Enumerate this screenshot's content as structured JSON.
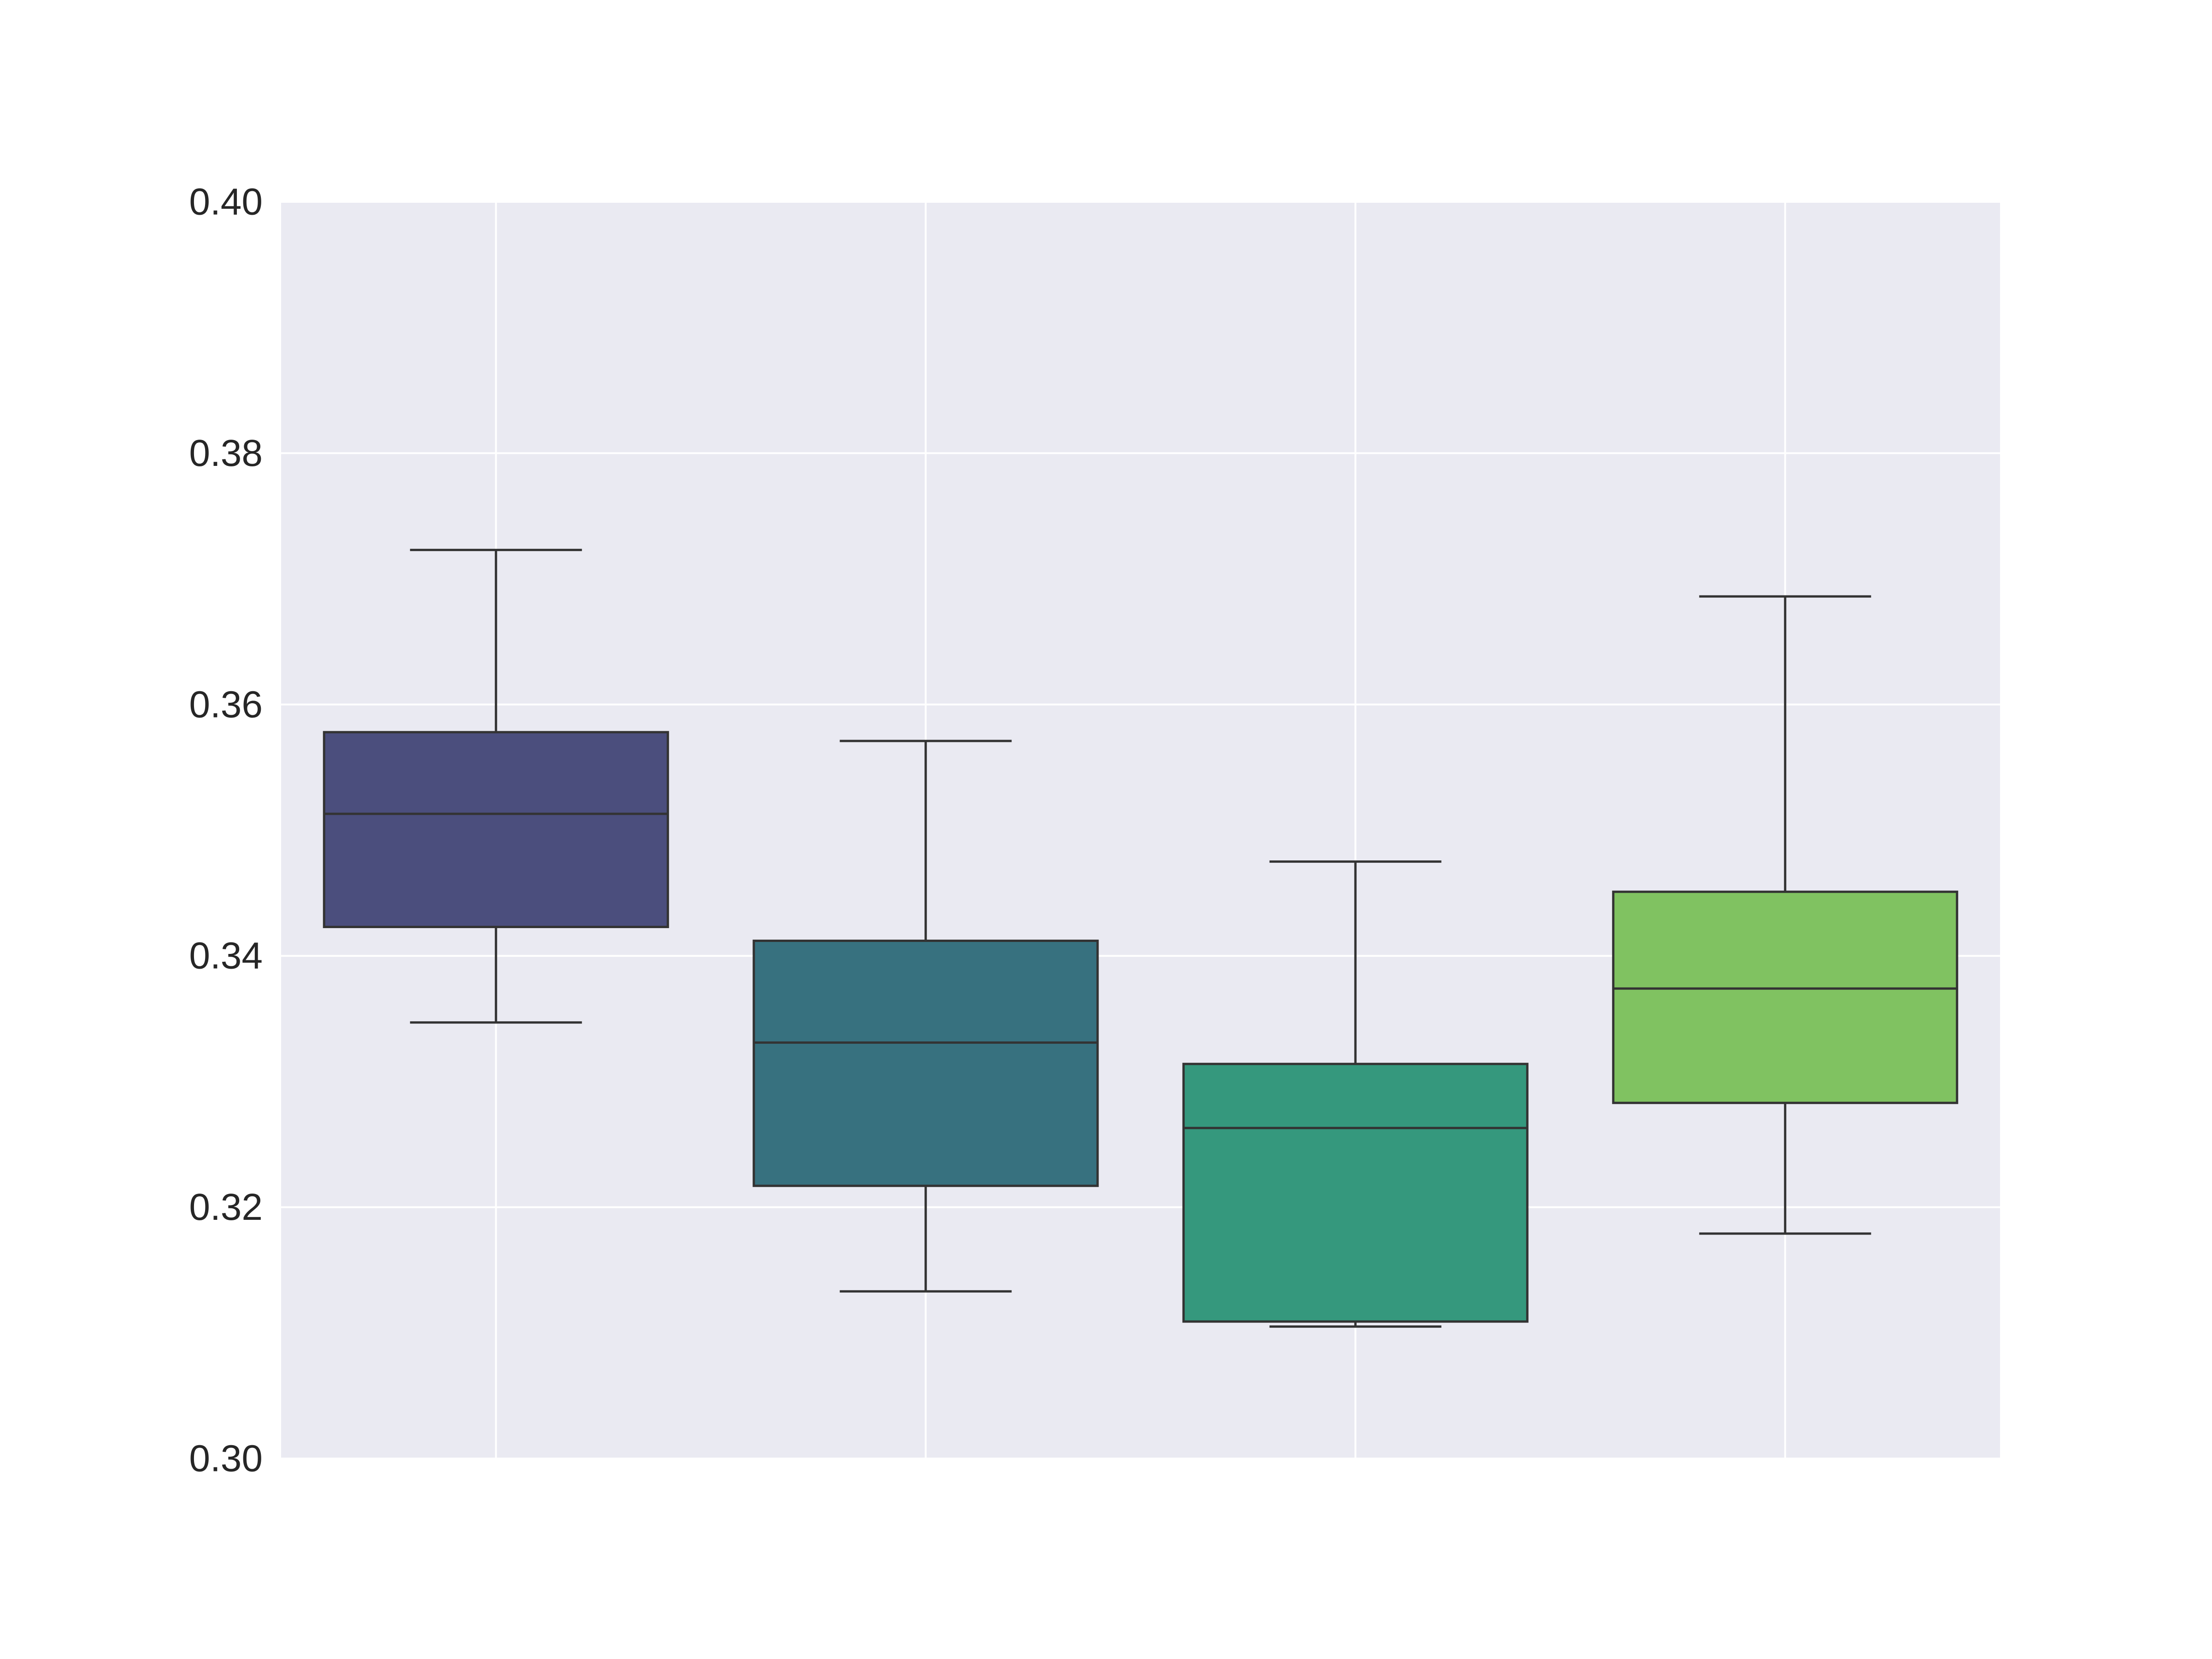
{
  "chart_data": {
    "type": "box",
    "title": "",
    "xlabel": "",
    "ylabel": "",
    "ylim": [
      0.3,
      0.4
    ],
    "yticks": [
      "0.30",
      "0.32",
      "0.34",
      "0.36",
      "0.38",
      "0.40"
    ],
    "grid": true,
    "legend": "none",
    "background_color": "#EAEAF2",
    "line_color": "#333333",
    "boxes": [
      {
        "whisker_low": 0.3347,
        "q1": 0.3423,
        "median": 0.3513,
        "q3": 0.3578,
        "whisker_high": 0.3723,
        "color": "#4B4E7D"
      },
      {
        "whisker_low": 0.3133,
        "q1": 0.3217,
        "median": 0.3331,
        "q3": 0.3412,
        "whisker_high": 0.3571,
        "color": "#37717F"
      },
      {
        "whisker_low": 0.3105,
        "q1": 0.3109,
        "median": 0.3263,
        "q3": 0.3314,
        "whisker_high": 0.3475,
        "color": "#35987D"
      },
      {
        "whisker_low": 0.3179,
        "q1": 0.3283,
        "median": 0.3374,
        "q3": 0.3451,
        "whisker_high": 0.3686,
        "color": "#80C261"
      }
    ]
  }
}
